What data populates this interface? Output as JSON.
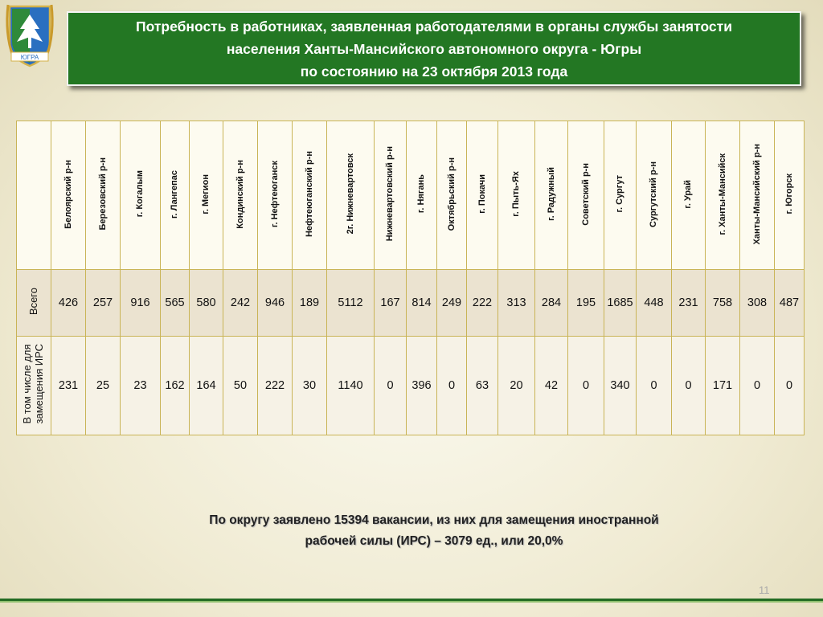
{
  "title": {
    "line1": "Потребность в работниках, заявленная работодателями в органы службы занятости",
    "line2": "населения  Ханты-Мансийского автономного округа - Югры",
    "line3": "по состоянию на 23 октября 2013 года"
  },
  "emblem": {
    "label": "ЮГРА"
  },
  "table": {
    "columns": [
      "Белоярский р-н",
      "Березовский р-н",
      "г. Когалым",
      "г. Лангепас",
      "г. Мегион",
      "Кондинский р-н",
      "г. Нефтеюганск",
      "Нефтеюганский р-н",
      "2г. Нижневартовск",
      "Нижневартовский р-н",
      "г. Нягань",
      "Октябрьский р-н",
      "г. Покачи",
      "г. Пыть-Ях",
      "г. Радужный",
      "Советский р-н",
      "г. Сургут",
      "Сургутский р-н",
      "г. Урай",
      "г. Ханты-Мансийск",
      "Ханты-Мансийский р-н",
      "г. Югорск"
    ],
    "rows": [
      {
        "label": "Всего",
        "values": [
          "426",
          "257",
          "916",
          "565",
          "580",
          "242",
          "946",
          "189",
          "5112",
          "167",
          "814",
          "249",
          "222",
          "313",
          "284",
          "195",
          "1685",
          "448",
          "231",
          "758",
          "308",
          "487"
        ]
      },
      {
        "label_line1": "В том числе для",
        "label_line2": "замещения ИРС",
        "values": [
          "231",
          "25",
          "23",
          "162",
          "164",
          "50",
          "222",
          "30",
          "1140",
          "0",
          "396",
          "0",
          "63",
          "20",
          "42",
          "0",
          "340",
          "0",
          "0",
          "171",
          "0",
          "0"
        ]
      }
    ]
  },
  "summary": {
    "line1": "По округу заявлено  15394 вакансии,  из них для замещения иностранной",
    "line2": "рабочей силы (ИРС) – 3079 ед., или  20,0%"
  },
  "page_number": "11",
  "colors": {
    "title_background": "#237723",
    "table_border": "#c9b456",
    "total_row_background": "#ebe3d0"
  }
}
